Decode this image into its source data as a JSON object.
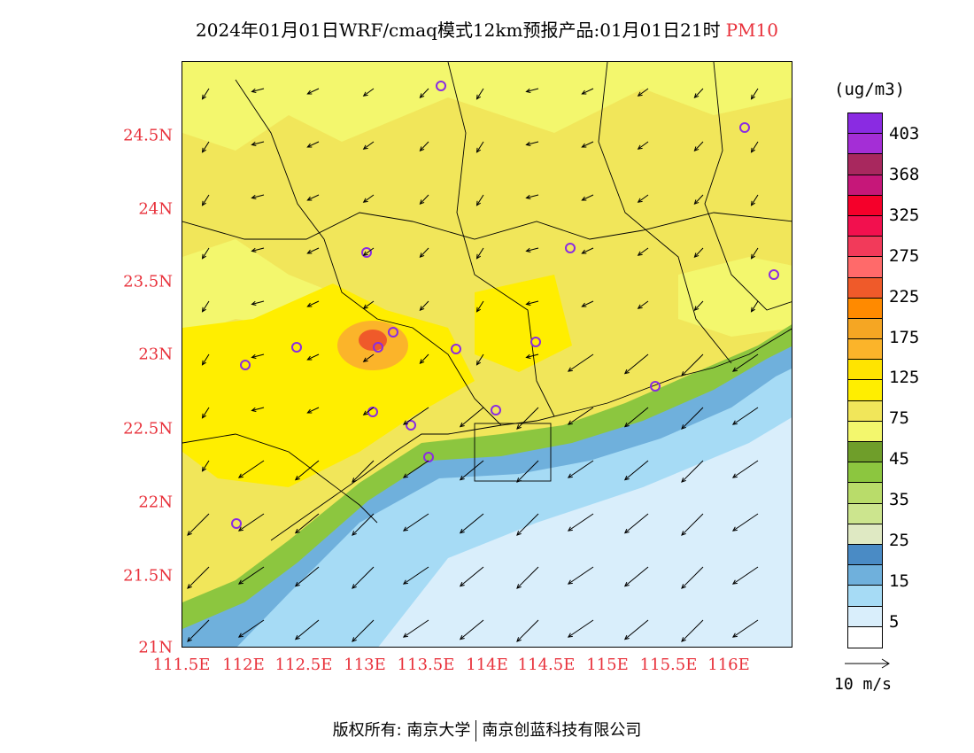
{
  "header": {
    "title": "2024年01月01日WRF/cmaq模式12km预报产品:01月01日21时",
    "pollutant": "PM10"
  },
  "axes": {
    "lat_ticks": [
      "24.5N",
      "24N",
      "23.5N",
      "23N",
      "22.5N",
      "22N",
      "21.5N",
      "21N"
    ],
    "lon_ticks": [
      "111.5E",
      "112E",
      "112.5E",
      "113E",
      "113.5E",
      "114E",
      "114.5E",
      "115E",
      "115.5E",
      "116E"
    ]
  },
  "legend": {
    "unit": "(ug/m3)",
    "labels": [
      "403",
      "368",
      "325",
      "275",
      "225",
      "175",
      "125",
      "75",
      "45",
      "35",
      "25",
      "15",
      "5"
    ],
    "colors": [
      "#8a2be2",
      "#a42ed6",
      "#a8285e",
      "#c61779",
      "#f5002a",
      "#f2104e",
      "#f23a5a",
      "#ff6a6a",
      "#ef5a2a",
      "#ff8a00",
      "#f5a623",
      "#fbb42a",
      "#ffe400",
      "#ffee00",
      "#f1e65a",
      "#f3f76d",
      "#6f9e2a",
      "#8cc63f",
      "#b9dc6a",
      "#cce58e",
      "#dfe9c3",
      "#4a8bc5",
      "#6fb0dc",
      "#a6dbf5",
      "#d9eefb",
      "#ffffff"
    ]
  },
  "wind_reference": {
    "label": "10 m/s"
  },
  "footer": {
    "copyright": "版权所有: 南京大学",
    "company": "南京创蓝科技有限公司"
  },
  "map": {
    "colors": {
      "ocean_far": "#d9eefb",
      "ocean_mid": "#a6dbf5",
      "ocean_near": "#6fb0dc",
      "coast_green": "#8cc63f",
      "land_light": "#f3f76d",
      "land_mid": "#f1e65a",
      "land_yellow": "#ffee00",
      "hotspot": "#fbb42a",
      "hotspot_core": "#ef5a2a",
      "station": "#8a2be2"
    }
  }
}
